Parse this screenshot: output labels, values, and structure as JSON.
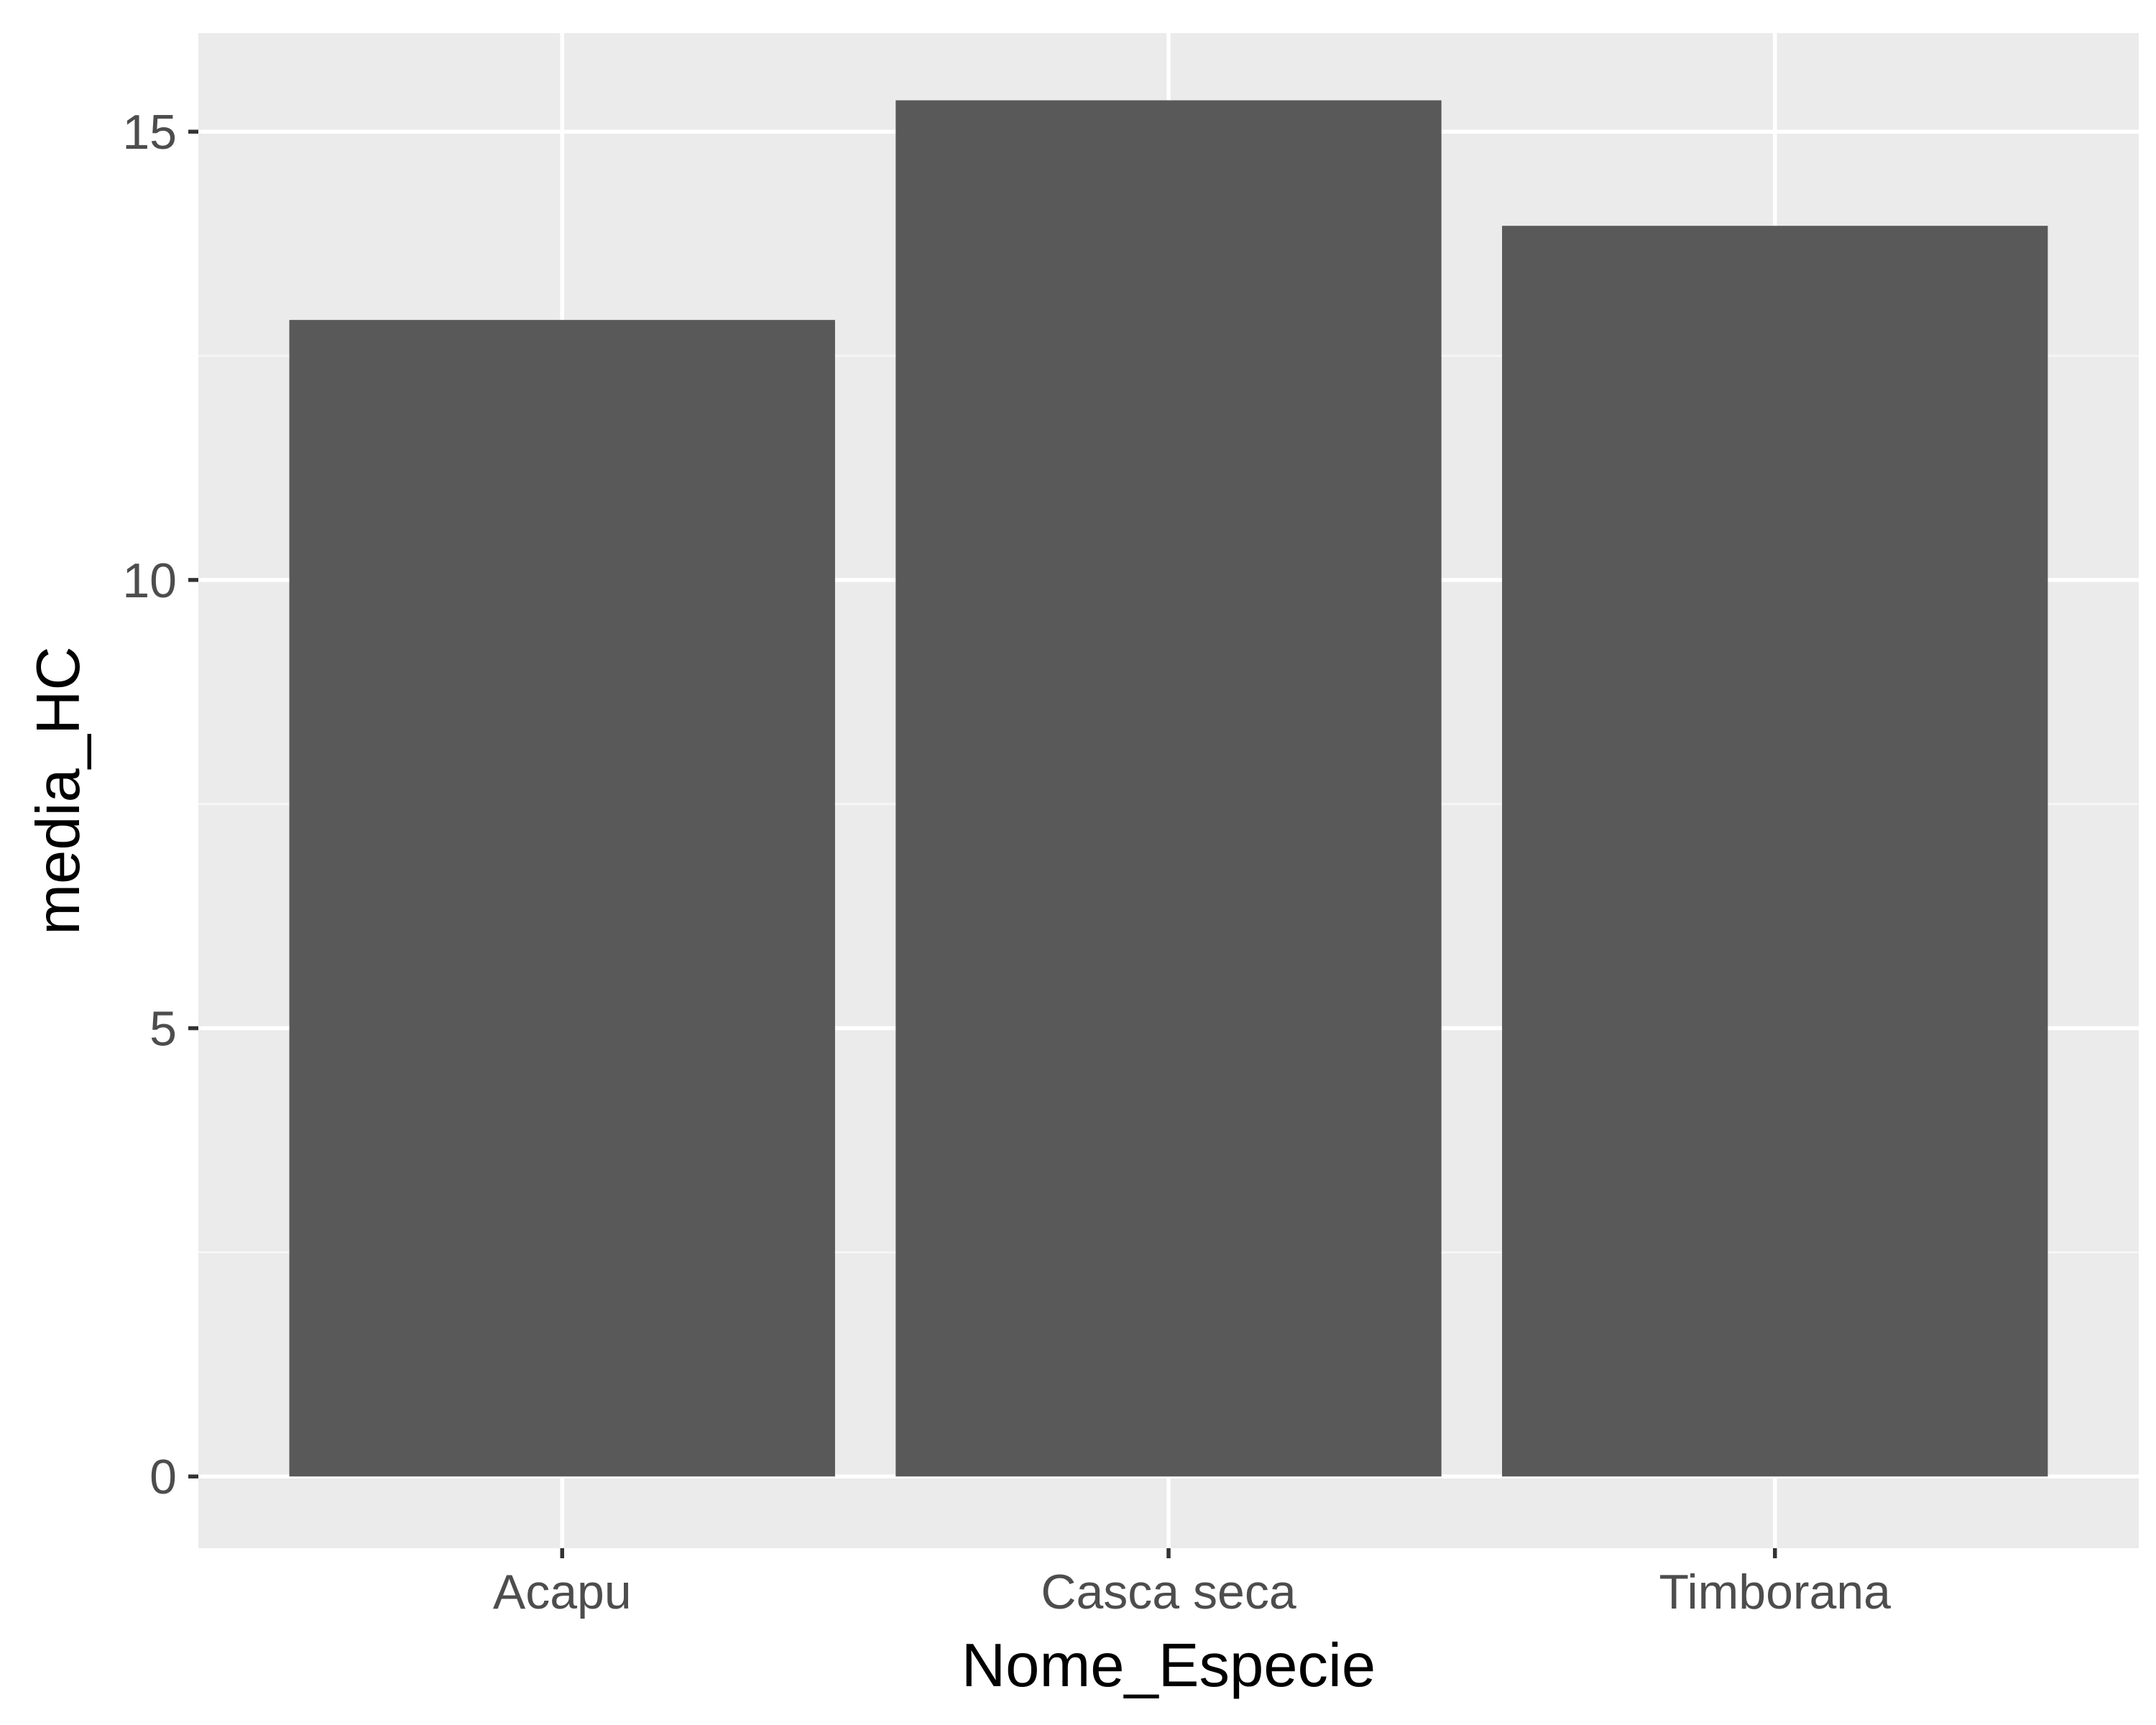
{
  "chart_data": {
    "type": "bar",
    "title": "",
    "xlabel": "Nome_Especie",
    "ylabel": "media_HC",
    "categories": [
      "Acapu",
      "Casca seca",
      "Timborana"
    ],
    "values": [
      12.9,
      15.35,
      13.95
    ],
    "ylim": [
      -0.8,
      16.1
    ],
    "yticks": [
      0,
      5,
      10,
      15
    ],
    "ytick_labels": [
      "0",
      "5",
      "10",
      "15"
    ],
    "grid": true,
    "legend": "none",
    "colors": {
      "bar": "#595959",
      "panel_background": "#ebebeb",
      "grid_major": "#ffffff",
      "grid_minor": "#f6f6f6",
      "tick": "#333333",
      "tick_label": "#4d4d4d",
      "axis_title": "#000000"
    }
  }
}
